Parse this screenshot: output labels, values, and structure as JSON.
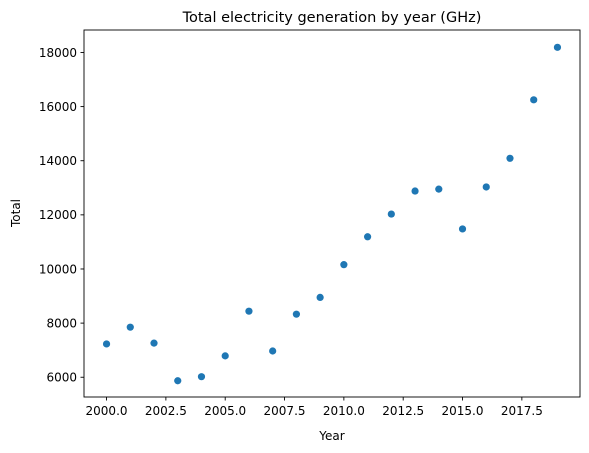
{
  "chart_data": {
    "type": "scatter",
    "title": "Total electricity generation by year (GHz)",
    "xlabel": "Year",
    "ylabel": "Total",
    "xlim": [
      1999.05,
      2019.95
    ],
    "ylim": [
      5270,
      18830
    ],
    "xticks": [
      2000.0,
      2002.5,
      2005.0,
      2007.5,
      2010.0,
      2012.5,
      2015.0,
      2017.5
    ],
    "xtick_labels": [
      "2000.0",
      "2002.5",
      "2005.0",
      "2007.5",
      "2010.0",
      "2012.5",
      "2015.0",
      "2017.5"
    ],
    "yticks": [
      6000,
      8000,
      10000,
      12000,
      14000,
      16000,
      18000
    ],
    "ytick_labels": [
      "6000",
      "8000",
      "10000",
      "12000",
      "14000",
      "16000",
      "18000"
    ],
    "grid": false,
    "marker_color": "#1f77b4",
    "points": [
      {
        "x": 2000,
        "y": 7230
      },
      {
        "x": 2001,
        "y": 7850
      },
      {
        "x": 2002,
        "y": 7260
      },
      {
        "x": 2003,
        "y": 5870
      },
      {
        "x": 2004,
        "y": 6020
      },
      {
        "x": 2005,
        "y": 6790
      },
      {
        "x": 2006,
        "y": 8440
      },
      {
        "x": 2007,
        "y": 6970
      },
      {
        "x": 2008,
        "y": 8330
      },
      {
        "x": 2009,
        "y": 8950
      },
      {
        "x": 2010,
        "y": 10160
      },
      {
        "x": 2011,
        "y": 11190
      },
      {
        "x": 2012,
        "y": 12030
      },
      {
        "x": 2013,
        "y": 12880
      },
      {
        "x": 2014,
        "y": 12950
      },
      {
        "x": 2015,
        "y": 11480
      },
      {
        "x": 2016,
        "y": 13030
      },
      {
        "x": 2017,
        "y": 14090
      },
      {
        "x": 2018,
        "y": 16250
      },
      {
        "x": 2019,
        "y": 18190
      }
    ]
  }
}
